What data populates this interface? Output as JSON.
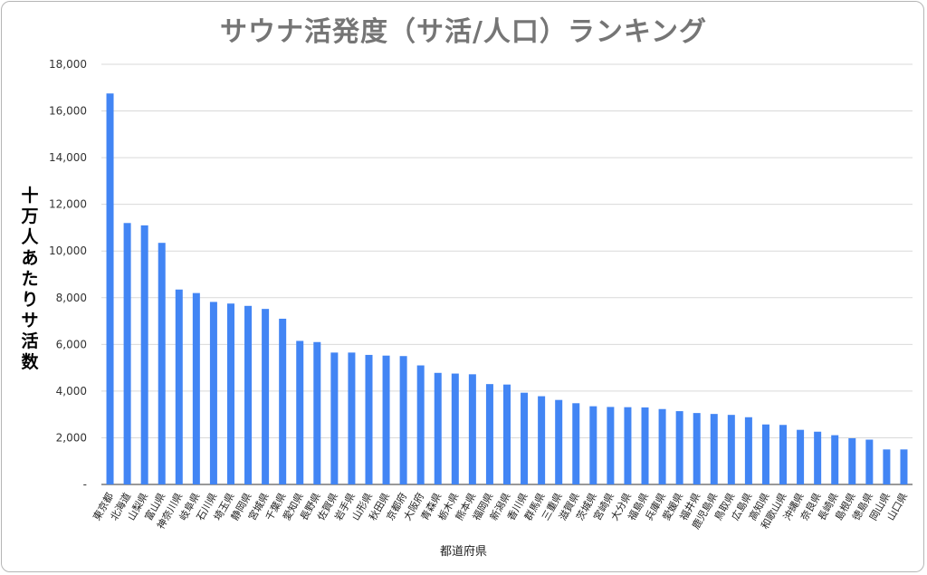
{
  "chart_data": {
    "type": "bar",
    "title": "サウナ活発度（サ活/人口）ランキング",
    "xlabel": "都道府県",
    "ylabel": "十万人あたりサ活数",
    "ylim": [
      0,
      18000
    ],
    "yticks": [
      "-",
      "2,000",
      "4,000",
      "6,000",
      "8,000",
      "10,000",
      "12,000",
      "14,000",
      "16,000",
      "18,000"
    ],
    "grid": true,
    "color": "#4285f4",
    "categories": [
      "東京都",
      "北海道",
      "山梨県",
      "富山県",
      "神奈川県",
      "岐阜県",
      "石川県",
      "埼玉県",
      "静岡県",
      "宮城県",
      "千葉県",
      "愛知県",
      "長野県",
      "佐賀県",
      "岩手県",
      "山形県",
      "秋田県",
      "京都府",
      "大阪府",
      "青森県",
      "栃木県",
      "熊本県",
      "福岡県",
      "新潟県",
      "香川県",
      "群馬県",
      "三重県",
      "滋賀県",
      "茨城県",
      "宮崎県",
      "大分県",
      "福島県",
      "兵庫県",
      "愛媛県",
      "福井県",
      "鹿児島県",
      "鳥取県",
      "広島県",
      "高知県",
      "和歌山県",
      "沖縄県",
      "奈良県",
      "長崎県",
      "島根県",
      "徳島県",
      "岡山県",
      "山口県"
    ],
    "values": [
      16750,
      11200,
      11100,
      10350,
      8350,
      8200,
      7820,
      7750,
      7650,
      7520,
      7100,
      6150,
      6100,
      5650,
      5650,
      5550,
      5520,
      5500,
      5100,
      4780,
      4750,
      4720,
      4300,
      4280,
      3930,
      3780,
      3620,
      3480,
      3350,
      3320,
      3310,
      3300,
      3230,
      3140,
      3060,
      3020,
      2980,
      2880,
      2570,
      2550,
      2340,
      2260,
      2110,
      1980,
      1920,
      1500,
      1500
    ]
  }
}
